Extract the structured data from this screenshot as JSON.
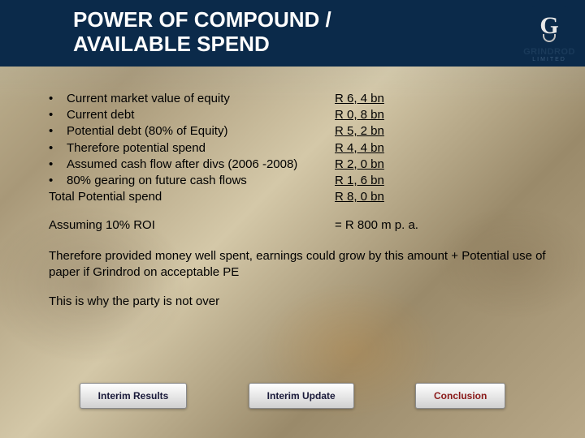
{
  "title": {
    "line1": "POWER OF COMPOUND /",
    "line2": "AVAILABLE SPEND"
  },
  "logo": {
    "letter": "G",
    "name": "GRINDROD",
    "sub": "LIMITED"
  },
  "items": [
    {
      "label": "Current market value of equity",
      "value": "R 6, 4 bn"
    },
    {
      "label": "Current debt",
      "value": "R 0, 8 bn"
    },
    {
      "label": "Potential debt (80% of Equity)",
      "value": "R 5, 2 bn"
    },
    {
      "label": "Therefore potential spend",
      "value": "R 4, 4 bn"
    },
    {
      "label": "Assumed cash flow after divs (2006 -2008)",
      "value": "R 2, 0 bn"
    },
    {
      "label": "80% gearing on future cash flows",
      "value": "R 1, 6 bn"
    }
  ],
  "total": {
    "label": "Total Potential spend",
    "value": "R 8, 0 bn"
  },
  "roi": {
    "label": "Assuming 10% ROI",
    "value": "=  R 800 m p. a."
  },
  "para1": "Therefore provided money well spent, earnings could grow by this amount + Potential use of paper if Grindrod on acceptable PE",
  "para2": "This is why the party is not over",
  "buttons": {
    "b1": "Interim Results",
    "b2": "Interim Update",
    "b3": "Conclusion"
  },
  "colors": {
    "title_bg": "#0b2a4a",
    "title_text": "#ffffff",
    "body_text": "#000000",
    "btn_active": "#8a1a1a"
  }
}
